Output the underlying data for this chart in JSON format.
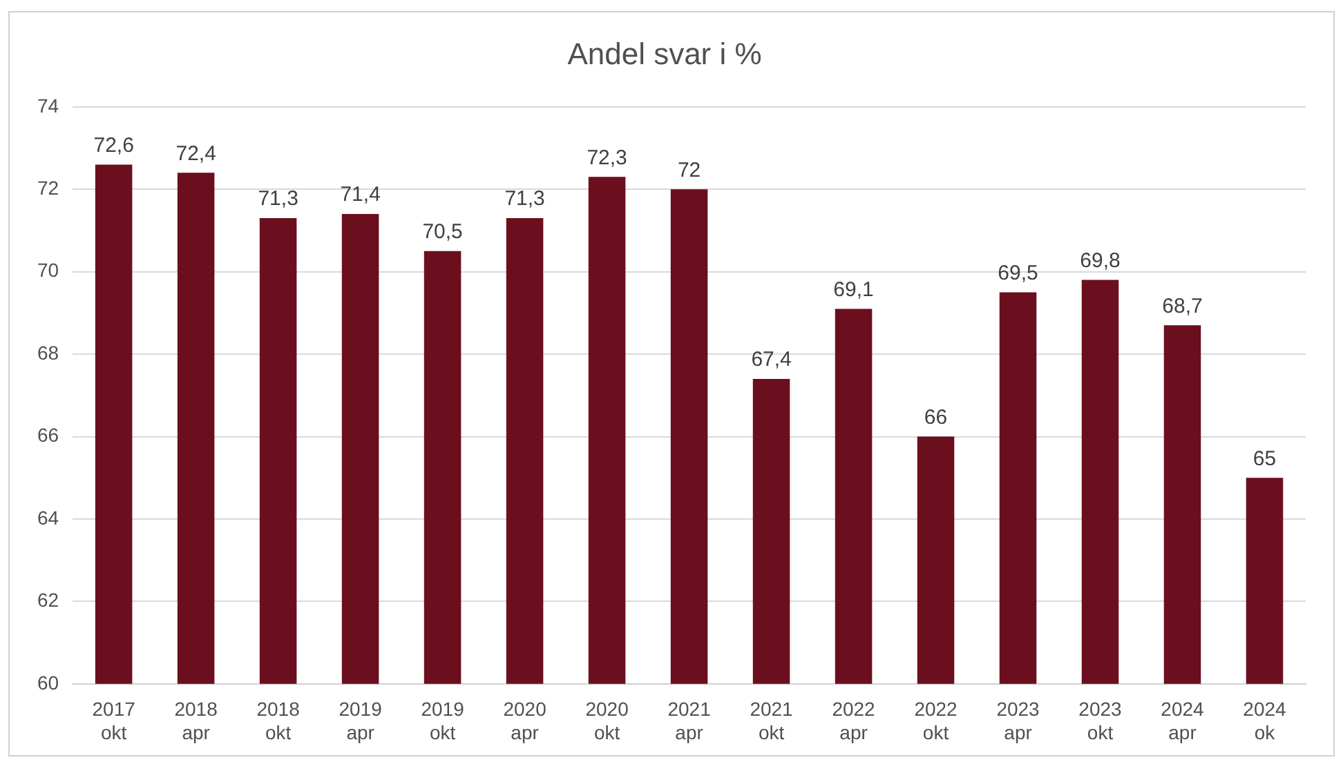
{
  "chart_data": {
    "type": "bar",
    "title": "Andel svar i %",
    "categories": [
      "2017\nokt",
      "2018\napr",
      "2018\nokt",
      "2019\napr",
      "2019\nokt",
      "2020\napr",
      "2020\nokt",
      "2021\napr",
      "2021\nokt",
      "2022\napr",
      "2022\nokt",
      "2023\napr",
      "2023\nokt",
      "2024\napr",
      "2024\nok"
    ],
    "values": [
      72.6,
      72.4,
      71.3,
      71.4,
      70.5,
      71.3,
      72.3,
      72,
      67.4,
      69.1,
      66,
      69.5,
      69.8,
      68.7,
      65
    ],
    "value_labels": [
      "72,6",
      "72,4",
      "71,3",
      "71,4",
      "70,5",
      "71,3",
      "72,3",
      "72",
      "67,4",
      "69,1",
      "66",
      "69,5",
      "69,8",
      "68,7",
      "65"
    ],
    "color": "#6b0f1e",
    "ylim": [
      60,
      74
    ],
    "yticks": [
      60,
      62,
      64,
      66,
      68,
      70,
      72,
      74
    ],
    "grid": "y"
  }
}
